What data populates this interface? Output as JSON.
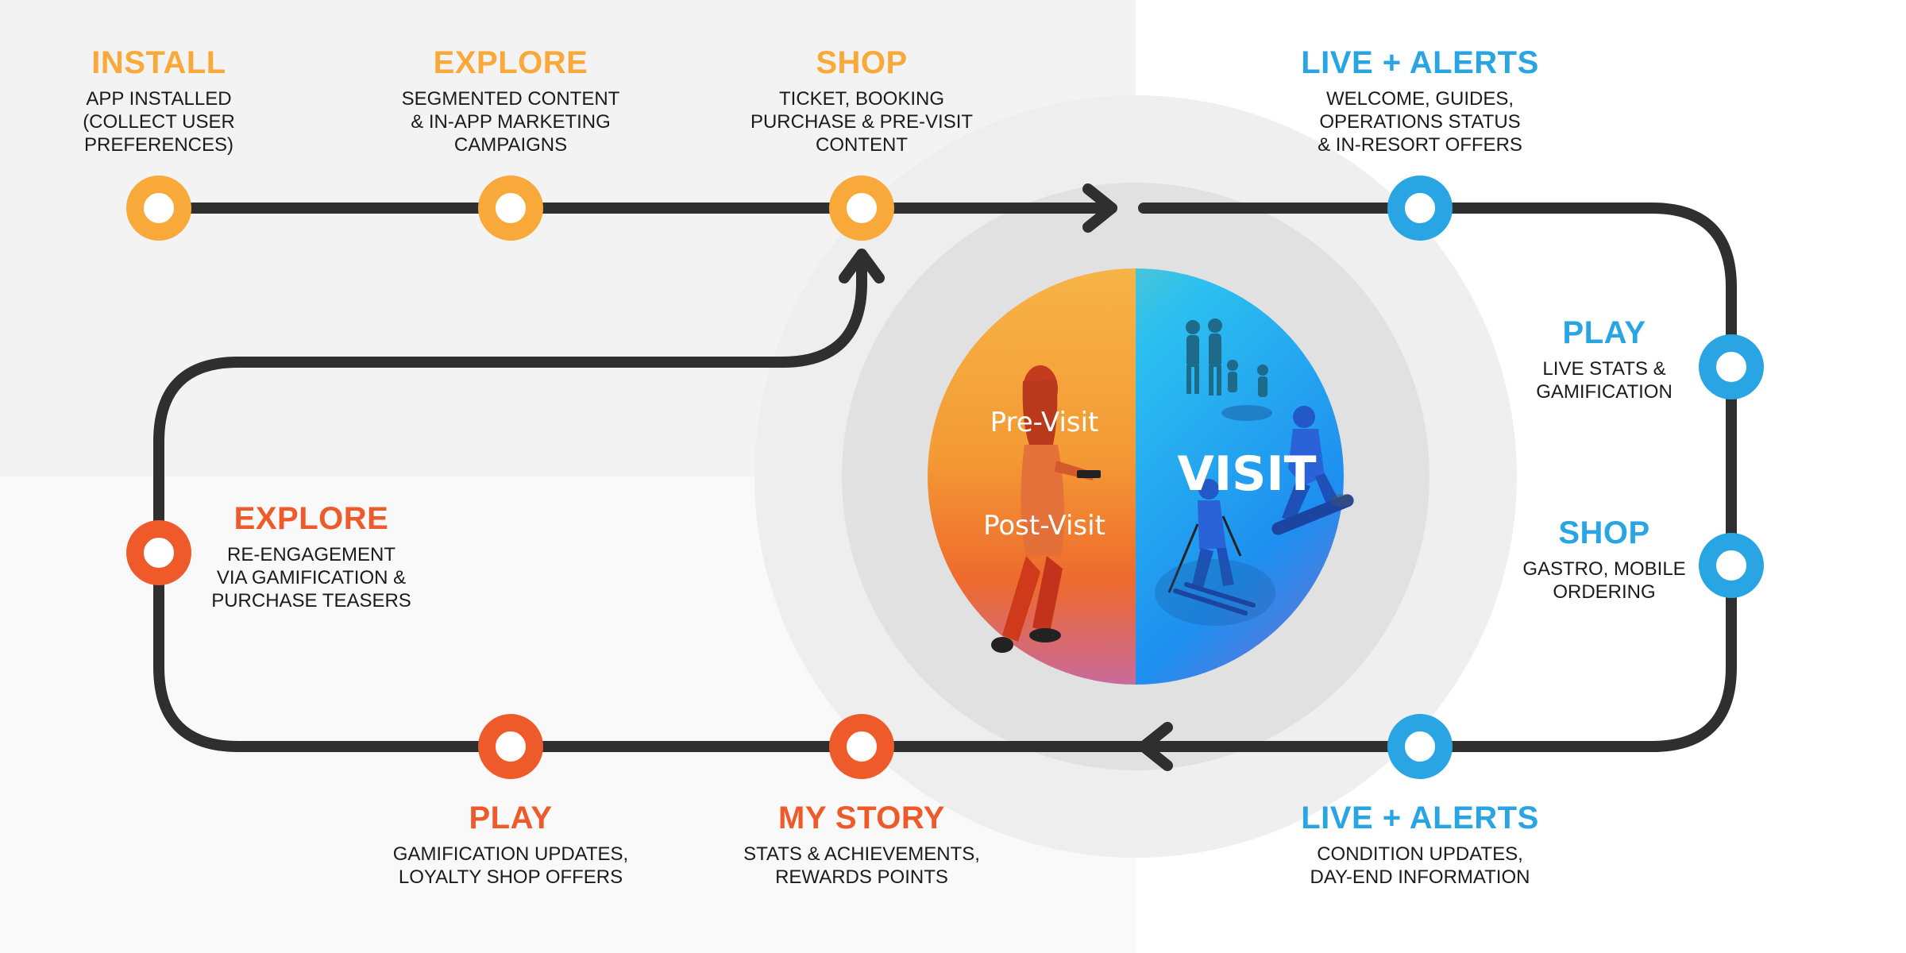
{
  "colors": {
    "pre": "#f9a93a",
    "visit": "#2aa5e3",
    "post": "#ef5a2a",
    "track": "#2f2f2f"
  },
  "center": {
    "pre_visit": "Pre-Visit",
    "post_visit": "Post-Visit",
    "visit": "VISIT"
  },
  "stages": {
    "install": {
      "title": "INSTALL",
      "desc": "APP INSTALLED\n(COLLECT USER\nPREFERENCES)"
    },
    "explore_pre": {
      "title": "EXPLORE",
      "desc": "SEGMENTED CONTENT\n& IN-APP MARKETING\nCAMPAIGNS"
    },
    "shop_pre": {
      "title": "SHOP",
      "desc": "TICKET, BOOKING\nPURCHASE & PRE-VISIT\nCONTENT"
    },
    "live_alerts_top": {
      "title": "LIVE + ALERTS",
      "desc": "WELCOME, GUIDES,\nOPERATIONS STATUS\n& IN-RESORT OFFERS"
    },
    "play_visit": {
      "title": "PLAY",
      "desc": "LIVE STATS &\nGAMIFICATION"
    },
    "shop_visit": {
      "title": "SHOP",
      "desc": "GASTRO, MOBILE\nORDERING"
    },
    "live_alerts_bottom": {
      "title": "LIVE + ALERTS",
      "desc": "CONDITION UPDATES,\nDAY-END INFORMATION"
    },
    "my_story": {
      "title": "MY STORY",
      "desc": "STATS & ACHIEVEMENTS,\nREWARDS POINTS"
    },
    "play_post": {
      "title": "PLAY",
      "desc": "GAMIFICATION UPDATES,\nLOYALTY SHOP OFFERS"
    },
    "explore_post": {
      "title": "EXPLORE",
      "desc": "RE-ENGAGEMENT\nVIA GAMIFICATION &\nPURCHASE TEASERS"
    }
  }
}
